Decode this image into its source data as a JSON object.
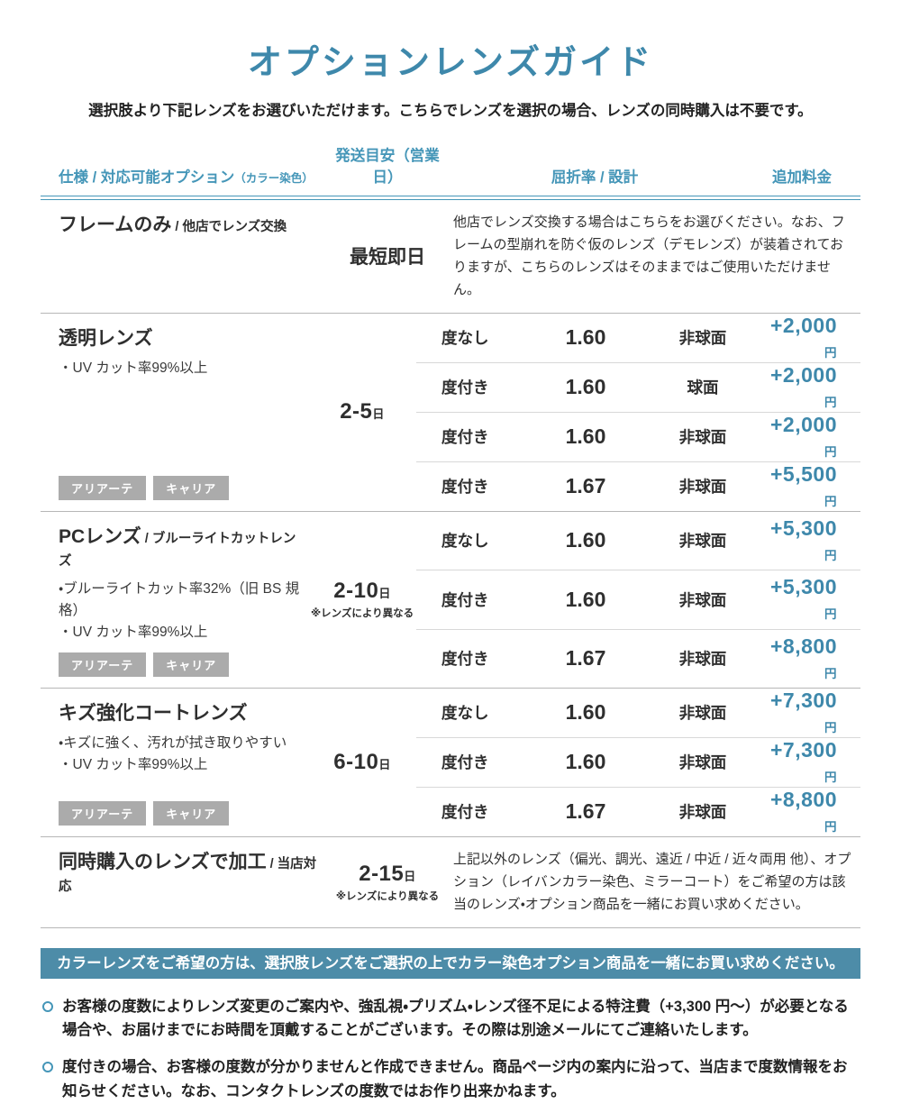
{
  "colors": {
    "accent": "#3e88ab",
    "accent_light": "#4596b8",
    "banner_bg": "#4d8ca8",
    "badge_bg": "#ababab"
  },
  "title": "オプションレンズガイド",
  "subtitle": "選択肢より下記レンズをお選びいただけます。こちらでレンズを選択の場合、レンズの同時購入は不要です。",
  "columns": {
    "spec": "仕様 / 対応可能オプション",
    "spec_sub": "（カラー染色）",
    "shipping": "発送目安（営業日）",
    "index": "屈折率 / 設計",
    "price": "追加料金"
  },
  "yen": "円",
  "day": "日",
  "sections": [
    {
      "name": "フレームのみ",
      "name_sub": " / 他店でレンズ交換",
      "shipping": "最短即日",
      "note": "他店でレンズ交換する場合はこちらをお選びください。なお、フレームの型崩れを防ぐ仮のレンズ（デモレンズ）が装着されておりますが、こちらのレンズはそのままではご使用いただけません。"
    },
    {
      "name": "透明レンズ",
      "features": [
        "・UV カット率99%以上"
      ],
      "badges": [
        "アリアーテ",
        "キャリア"
      ],
      "shipping": "2-5",
      "rows": [
        {
          "type": "度なし",
          "index": "1.60",
          "design": "非球面",
          "price": "+2,000"
        },
        {
          "type": "度付き",
          "index": "1.60",
          "design": "球面",
          "price": "+2,000"
        },
        {
          "type": "度付き",
          "index": "1.60",
          "design": "非球面",
          "price": "+2,000"
        },
        {
          "type": "度付き",
          "index": "1.67",
          "design": "非球面",
          "price": "+5,500"
        }
      ]
    },
    {
      "name": "PCレンズ",
      "name_sub": " / ブルーライトカットレンズ",
      "features": [
        "・ブルーライトカット率32%（旧 BS 規格）",
        "・UV カット率99%以上"
      ],
      "badges": [
        "アリアーテ",
        "キャリア"
      ],
      "shipping": "2-10",
      "shipping_note": "※レンズにより異なる",
      "rows": [
        {
          "type": "度なし",
          "index": "1.60",
          "design": "非球面",
          "price": "+5,300"
        },
        {
          "type": "度付き",
          "index": "1.60",
          "design": "非球面",
          "price": "+5,300"
        },
        {
          "type": "度付き",
          "index": "1.67",
          "design": "非球面",
          "price": "+8,800"
        }
      ]
    },
    {
      "name": "キズ強化コートレンズ",
      "features": [
        "・キズに強く、汚れが拭き取りやすい",
        "・UV カット率99%以上"
      ],
      "badges": [
        "アリアーテ",
        "キャリア"
      ],
      "shipping": "6-10",
      "rows": [
        {
          "type": "度なし",
          "index": "1.60",
          "design": "非球面",
          "price": "+7,300"
        },
        {
          "type": "度付き",
          "index": "1.60",
          "design": "非球面",
          "price": "+7,300"
        },
        {
          "type": "度付き",
          "index": "1.67",
          "design": "非球面",
          "price": "+8,800"
        }
      ]
    },
    {
      "name": "同時購入のレンズで加工",
      "name_sub": " / 当店対応",
      "shipping": "2-15",
      "shipping_note": "※レンズにより異なる",
      "note": "上記以外のレンズ（偏光、調光、遠近 / 中近 / 近々両用 他）、オプション（レイバンカラー染色、ミラーコート）をご希望の方は該当のレンズ・オプション商品を一緒にお買い求めください。"
    }
  ],
  "banner": "カラーレンズをご希望の方は、選択肢レンズをご選択の上でカラー染色オプション商品を一緒にお買い求めください。",
  "notes": [
    "お客様の度数によりレンズ変更のご案内や、強乱視・プリズム・レンズ径不足による特注費（+3,300 円〜）が必要となる場合や、お届けまでにお時間を頂戴することがございます。その際は別途メールにてご連絡いたします。",
    "度付きの場合、お客様の度数が分かりませんと作成できません。商品ページ内の案内に沿って、当店まで度数情報をお知らせください。なお、コンタクトレンズの度数ではお作り出来かねます。"
  ]
}
